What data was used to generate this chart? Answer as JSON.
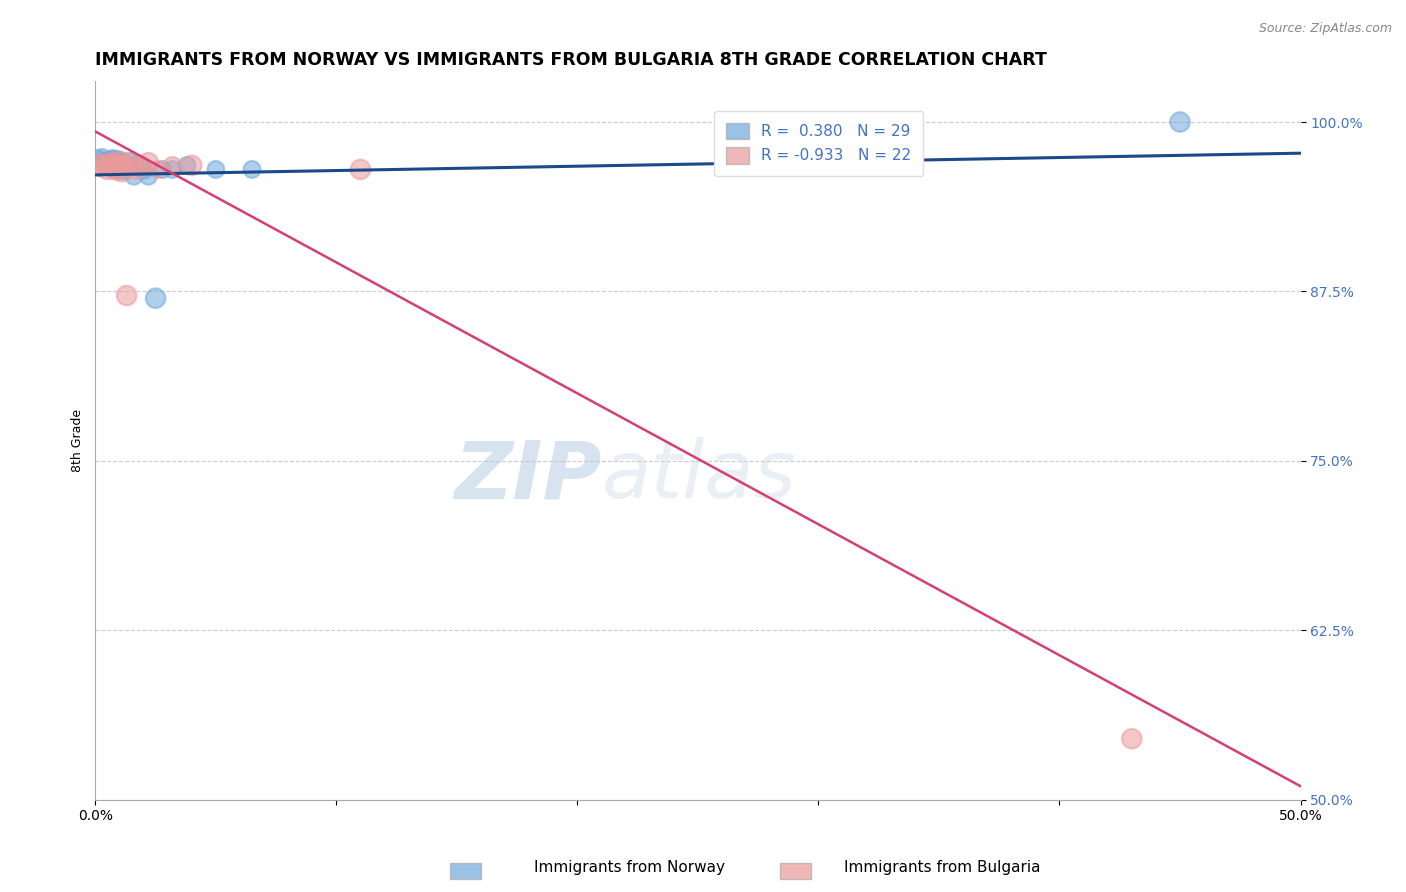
{
  "title": "IMMIGRANTS FROM NORWAY VS IMMIGRANTS FROM BULGARIA 8TH GRADE CORRELATION CHART",
  "source": "Source: ZipAtlas.com",
  "ylabel": "8th Grade",
  "xlim": [
    0.0,
    0.5
  ],
  "ylim": [
    0.5,
    1.03
  ],
  "yticks": [
    0.5,
    0.625,
    0.75,
    0.875,
    1.0
  ],
  "yticklabels": [
    "50.0%",
    "62.5%",
    "75.0%",
    "87.5%",
    "100.0%"
  ],
  "norway_R": 0.38,
  "norway_N": 29,
  "bulgaria_R": -0.933,
  "bulgaria_N": 22,
  "norway_color": "#6fa8dc",
  "bulgaria_color": "#ea9999",
  "norway_line_color": "#1a4a8a",
  "bulgaria_line_color": "#d44070",
  "norway_scatter_x": [
    0.001,
    0.002,
    0.003,
    0.004,
    0.005,
    0.005,
    0.006,
    0.007,
    0.007,
    0.008,
    0.008,
    0.009,
    0.01,
    0.01,
    0.011,
    0.012,
    0.013,
    0.014,
    0.016,
    0.018,
    0.02,
    0.022,
    0.025,
    0.028,
    0.032,
    0.038,
    0.05,
    0.065,
    0.45
  ],
  "norway_scatter_y": [
    0.975,
    0.97,
    0.975,
    0.972,
    0.97,
    0.968,
    0.97,
    0.972,
    0.97,
    0.968,
    0.97,
    0.965,
    0.972,
    0.968,
    0.97,
    0.965,
    0.968,
    0.97,
    0.96,
    0.968,
    0.965,
    0.96,
    0.87,
    0.965,
    0.965,
    0.968,
    0.965,
    0.965,
    1.0
  ],
  "norway_scatter_sizes": [
    80,
    80,
    100,
    120,
    200,
    150,
    180,
    200,
    150,
    250,
    300,
    200,
    150,
    200,
    150,
    200,
    150,
    200,
    150,
    200,
    180,
    150,
    200,
    150,
    150,
    150,
    150,
    150,
    200
  ],
  "bulgaria_scatter_x": [
    0.001,
    0.002,
    0.003,
    0.004,
    0.005,
    0.006,
    0.007,
    0.008,
    0.009,
    0.01,
    0.011,
    0.012,
    0.013,
    0.015,
    0.017,
    0.019,
    0.022,
    0.026,
    0.032,
    0.04,
    0.11,
    0.43
  ],
  "bulgaria_scatter_y": [
    0.97,
    0.965,
    0.968,
    0.97,
    0.965,
    0.968,
    0.97,
    0.965,
    0.968,
    0.97,
    0.965,
    0.968,
    0.872,
    0.97,
    0.965,
    0.968,
    0.97,
    0.965,
    0.968,
    0.968,
    0.965,
    0.545
  ],
  "bulgaria_scatter_sizes": [
    120,
    100,
    150,
    150,
    200,
    180,
    200,
    200,
    200,
    250,
    300,
    200,
    200,
    200,
    200,
    150,
    200,
    150,
    150,
    200,
    200,
    200
  ],
  "watermark_zip": "ZIP",
  "watermark_atlas": "atlas",
  "legend_labels": [
    "Immigrants from Norway",
    "Immigrants from Bulgaria"
  ],
  "grid_color": "#cccccc",
  "background_color": "#ffffff",
  "title_fontsize": 12.5,
  "axis_label_fontsize": 9,
  "tick_color": "#4472c4",
  "tick_fontsize": 10,
  "legend_fontsize": 11,
  "source_fontsize": 9,
  "r_n_color": "#4472c4"
}
